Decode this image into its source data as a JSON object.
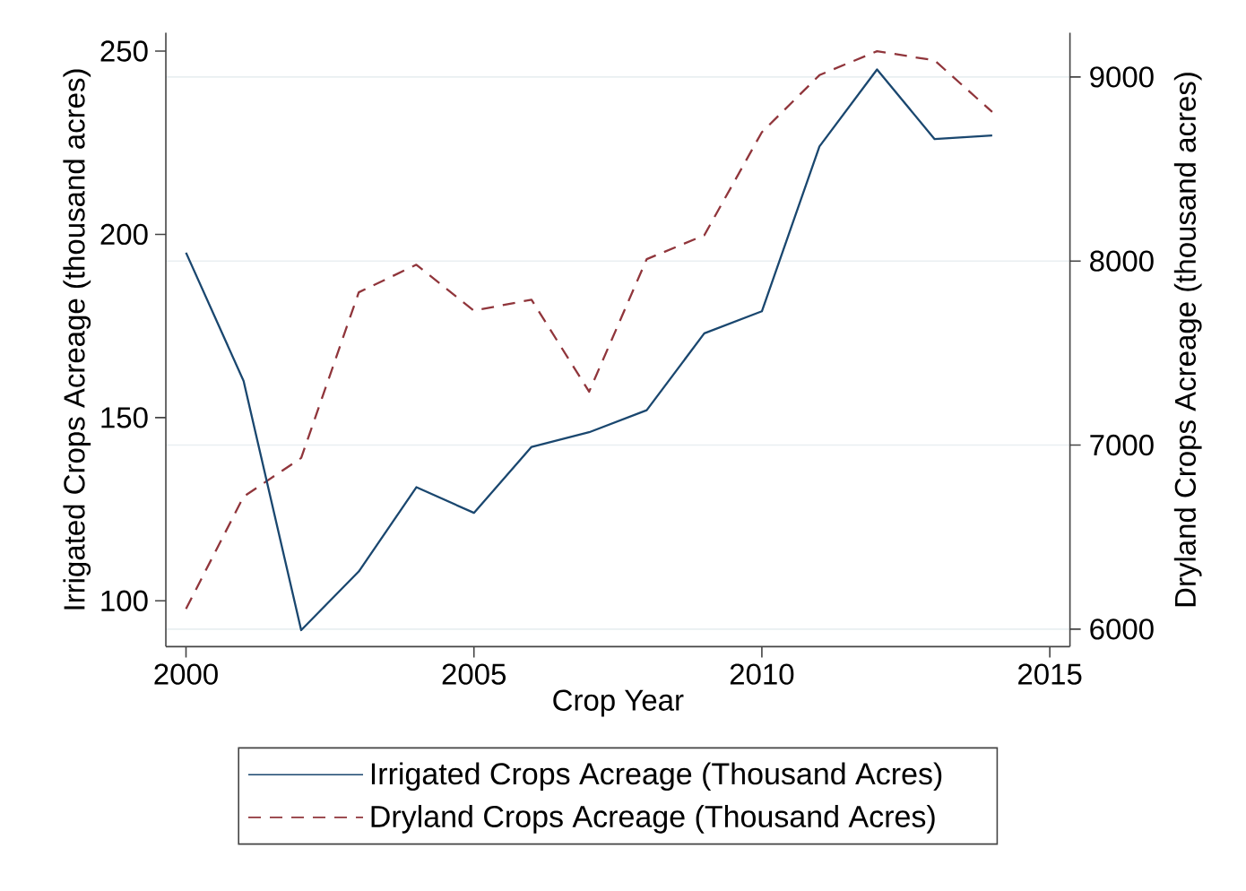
{
  "chart_data": {
    "type": "line",
    "xlabel": "Crop Year",
    "ylabel": "Irrigated Crops Acreage (thousand acres)",
    "y2label": "Dryland Crops Acreage (thousand acres)",
    "x": [
      2000,
      2001,
      2002,
      2003,
      2004,
      2005,
      2006,
      2007,
      2008,
      2009,
      2010,
      2011,
      2012,
      2013,
      2014
    ],
    "series": [
      {
        "name": "Irrigated Crops Acreage (Thousand Acres)",
        "color": "#1a476f",
        "line_style": "solid",
        "values": [
          195,
          160,
          92,
          108,
          131,
          124,
          142,
          146,
          152,
          173,
          179,
          224,
          245,
          226,
          227
        ]
      },
      {
        "name": "Dryland Crops Acreage (Thousand Acres)",
        "color": "#90353b",
        "line_style": "dashed",
        "axis": "y2",
        "values": [
          6110,
          6720,
          6930,
          7830,
          7980,
          7730,
          7790,
          7290,
          8010,
          8140,
          8700,
          9010,
          9140,
          9090,
          8810
        ]
      }
    ],
    "xlim": [
      1999.65,
      2015.35
    ],
    "xticks": [
      2000,
      2005,
      2010,
      2015
    ],
    "ylim": [
      87.5,
      255
    ],
    "yticks": [
      100,
      150,
      200,
      250
    ],
    "y2lim": [
      5905,
      9240
    ],
    "y2ticks": [
      6000,
      7000,
      8000,
      9000
    ],
    "grid": "y",
    "legend": "bottom"
  }
}
